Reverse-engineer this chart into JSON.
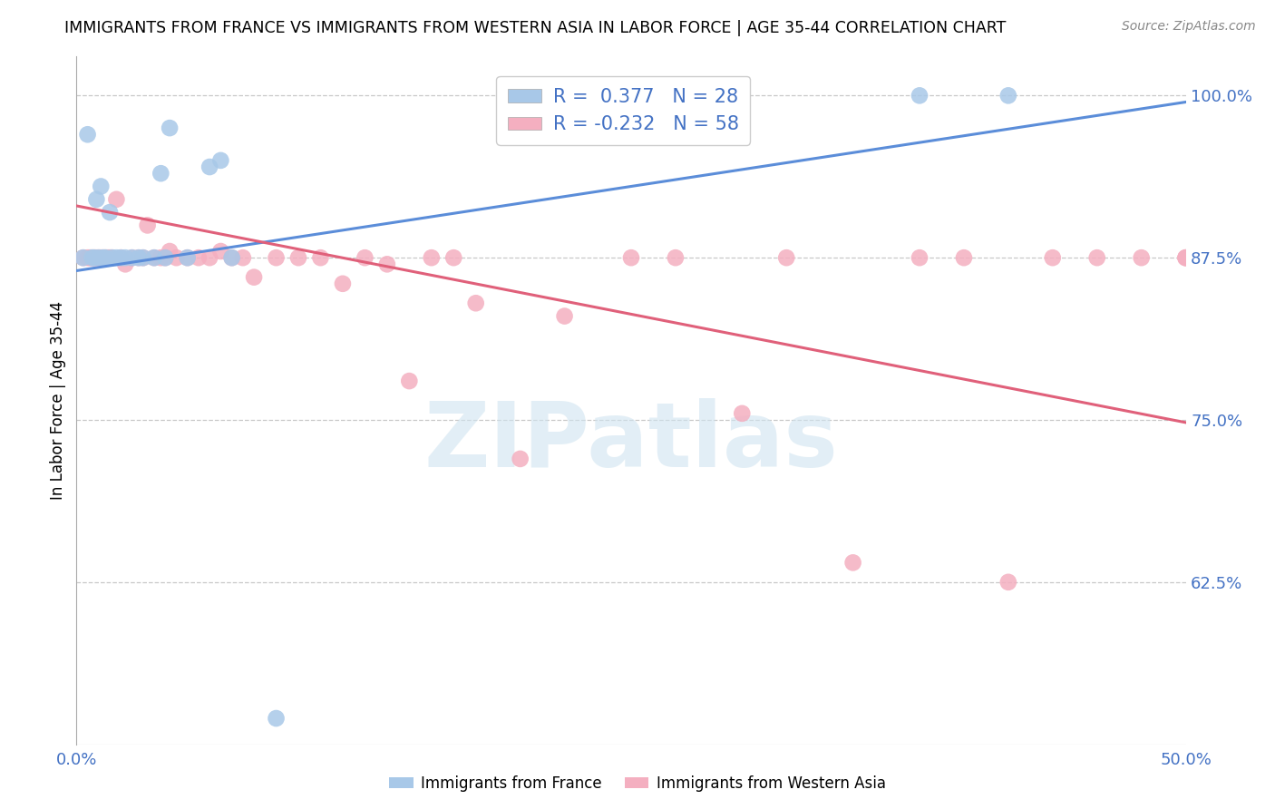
{
  "title": "IMMIGRANTS FROM FRANCE VS IMMIGRANTS FROM WESTERN ASIA IN LABOR FORCE | AGE 35-44 CORRELATION CHART",
  "source": "Source: ZipAtlas.com",
  "ylabel": "In Labor Force | Age 35-44",
  "xlim": [
    0.0,
    0.5
  ],
  "ylim": [
    0.5,
    1.03
  ],
  "yticks": [
    0.625,
    0.75,
    0.875,
    1.0
  ],
  "ytick_labels": [
    "62.5%",
    "75.0%",
    "87.5%",
    "100.0%"
  ],
  "xtick_positions": [
    0.0,
    0.1,
    0.2,
    0.3,
    0.4,
    0.5
  ],
  "legend_r_france": " 0.377",
  "legend_n_france": "28",
  "legend_r_western_asia": "-0.232",
  "legend_n_western_asia": "58",
  "france_color": "#a8c8e8",
  "western_asia_color": "#f4afc0",
  "france_line_color": "#5b8dd9",
  "western_asia_line_color": "#e0607a",
  "watermark_text": "ZIPatlas",
  "watermark_color": "#d0e4f0",
  "france_line_x": [
    0.0,
    0.5
  ],
  "france_line_y": [
    0.865,
    0.995
  ],
  "wa_line_x": [
    0.0,
    0.5
  ],
  "wa_line_y": [
    0.915,
    0.748
  ],
  "france_x": [
    0.003,
    0.005,
    0.007,
    0.008,
    0.009,
    0.01,
    0.011,
    0.012,
    0.013,
    0.015,
    0.016,
    0.018,
    0.02,
    0.022,
    0.025,
    0.028,
    0.03,
    0.035,
    0.038,
    0.04,
    0.042,
    0.05,
    0.06,
    0.065,
    0.07,
    0.09,
    0.38,
    0.42
  ],
  "france_y": [
    0.875,
    0.97,
    0.875,
    0.875,
    0.92,
    0.875,
    0.93,
    0.875,
    0.875,
    0.91,
    0.875,
    0.875,
    0.875,
    0.875,
    0.875,
    0.875,
    0.875,
    0.875,
    0.94,
    0.875,
    0.975,
    0.875,
    0.945,
    0.95,
    0.875,
    0.52,
    1.0,
    1.0
  ],
  "wa_x": [
    0.003,
    0.005,
    0.006,
    0.007,
    0.008,
    0.009,
    0.01,
    0.011,
    0.012,
    0.013,
    0.014,
    0.015,
    0.016,
    0.018,
    0.02,
    0.022,
    0.025,
    0.028,
    0.03,
    0.032,
    0.035,
    0.038,
    0.04,
    0.042,
    0.045,
    0.05,
    0.055,
    0.06,
    0.065,
    0.07,
    0.075,
    0.08,
    0.09,
    0.1,
    0.11,
    0.12,
    0.13,
    0.14,
    0.15,
    0.16,
    0.17,
    0.18,
    0.2,
    0.22,
    0.25,
    0.27,
    0.3,
    0.32,
    0.35,
    0.38,
    0.4,
    0.42,
    0.44,
    0.46,
    0.48,
    0.5,
    0.5,
    0.5
  ],
  "wa_y": [
    0.875,
    0.875,
    0.875,
    0.875,
    0.875,
    0.875,
    0.875,
    0.875,
    0.875,
    0.875,
    0.875,
    0.875,
    0.875,
    0.92,
    0.875,
    0.87,
    0.875,
    0.875,
    0.875,
    0.9,
    0.875,
    0.875,
    0.875,
    0.88,
    0.875,
    0.875,
    0.875,
    0.875,
    0.88,
    0.875,
    0.875,
    0.86,
    0.875,
    0.875,
    0.875,
    0.855,
    0.875,
    0.87,
    0.78,
    0.875,
    0.875,
    0.84,
    0.72,
    0.83,
    0.875,
    0.875,
    0.755,
    0.875,
    0.64,
    0.875,
    0.875,
    0.625,
    0.875,
    0.875,
    0.875,
    0.875,
    0.875,
    0.875
  ]
}
